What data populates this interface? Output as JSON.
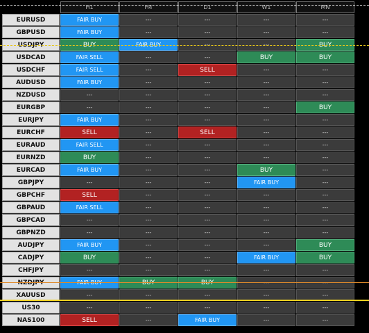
{
  "header": [
    "H1",
    "H4",
    "D1",
    "W1",
    "MN"
  ],
  "rows": [
    {
      "symbol": "EURUSD",
      "signals": [
        "FAIR BUY",
        "---",
        "---",
        "---",
        "---"
      ]
    },
    {
      "symbol": "GBPUSD",
      "signals": [
        "FAIR BUY",
        "---",
        "---",
        "---",
        "---"
      ]
    },
    {
      "symbol": "USDJPY",
      "signals": [
        "BUY",
        "FAIR BUY",
        "---",
        "---",
        "BUY"
      ]
    },
    {
      "symbol": "USDCAD",
      "signals": [
        "FAIR SELL",
        "---",
        "---",
        "BUY",
        "BUY"
      ]
    },
    {
      "symbol": "USDCHF",
      "signals": [
        "FAIR SELL",
        "---",
        "SELL",
        "---",
        "---"
      ]
    },
    {
      "symbol": "AUDUSD",
      "signals": [
        "FAIR BUY",
        "---",
        "---",
        "---",
        "---"
      ]
    },
    {
      "symbol": "NZDUSD",
      "signals": [
        "---",
        "---",
        "---",
        "---",
        "---"
      ]
    },
    {
      "symbol": "EURGBP",
      "signals": [
        "---",
        "---",
        "---",
        "---",
        "BUY"
      ]
    },
    {
      "symbol": "EURJPY",
      "signals": [
        "FAIR BUY",
        "---",
        "---",
        "---",
        "---"
      ]
    },
    {
      "symbol": "EURCHF",
      "signals": [
        "SELL",
        "---",
        "SELL",
        "---",
        "---"
      ]
    },
    {
      "symbol": "EURAUD",
      "signals": [
        "FAIR SELL",
        "---",
        "---",
        "---",
        "---"
      ]
    },
    {
      "symbol": "EURNZD",
      "signals": [
        "BUY",
        "---",
        "---",
        "---",
        "---"
      ]
    },
    {
      "symbol": "EURCAD",
      "signals": [
        "FAIR BUY",
        "---",
        "---",
        "BUY",
        "---"
      ]
    },
    {
      "symbol": "GBPJPY",
      "signals": [
        "---",
        "---",
        "---",
        "FAIR BUY",
        "---"
      ]
    },
    {
      "symbol": "GBPCHF",
      "signals": [
        "SELL",
        "---",
        "---",
        "---",
        "---"
      ]
    },
    {
      "symbol": "GBPAUD",
      "signals": [
        "FAIR SELL",
        "---",
        "---",
        "---",
        "---"
      ]
    },
    {
      "symbol": "GBPCAD",
      "signals": [
        "---",
        "---",
        "---",
        "---",
        "---"
      ]
    },
    {
      "symbol": "GBPNZD",
      "signals": [
        "---",
        "---",
        "---",
        "---",
        "---"
      ]
    },
    {
      "symbol": "AUDJPY",
      "signals": [
        "FAIR BUY",
        "---",
        "---",
        "---",
        "BUY"
      ]
    },
    {
      "symbol": "CADJPY",
      "signals": [
        "BUY",
        "---",
        "---",
        "FAIR BUY",
        "BUY"
      ]
    },
    {
      "symbol": "CHFJPY",
      "signals": [
        "---",
        "---",
        "---",
        "---",
        "---"
      ]
    },
    {
      "symbol": "NZDJPY",
      "signals": [
        "FAIR BUY",
        "BUY",
        "BUY",
        "---",
        "---"
      ]
    },
    {
      "symbol": "XAUUSD",
      "signals": [
        "---",
        "---",
        "---",
        "---",
        "---"
      ]
    },
    {
      "symbol": "US30",
      "signals": [
        "---",
        "---",
        "---",
        "---",
        "---"
      ]
    },
    {
      "symbol": "NAS100",
      "signals": [
        "SELL",
        "---",
        "FAIR BUY",
        "---",
        "---"
      ]
    }
  ]
}
